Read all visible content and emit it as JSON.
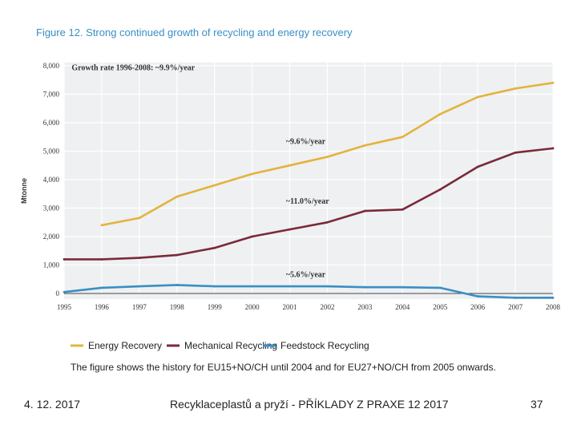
{
  "figure": {
    "title": "Figure 12. Strong continued growth of recycling and energy recovery",
    "note": "The figure shows the history for EU15+NO/CH until 2004 and for EU27+NO/CH from 2005 onwards."
  },
  "chart_data": {
    "type": "line",
    "title": "Figure 12. Strong continued growth of recycling and energy recovery",
    "xlabel": "",
    "ylabel": "Mtonne",
    "x": [
      1995,
      1996,
      1997,
      1998,
      1999,
      2000,
      2001,
      2002,
      2003,
      2004,
      2005,
      2006,
      2007,
      2008
    ],
    "x_ticks": [
      "1995",
      "1996",
      "1997",
      "1998",
      "1999",
      "2000",
      "2001",
      "2002",
      "2003",
      "2004",
      "2005",
      "2006",
      "2007",
      "2008"
    ],
    "y_ticks": [
      "0",
      "1,000",
      "2,000",
      "3,000",
      "4,000",
      "5,000",
      "6,000",
      "7,000",
      "8,000"
    ],
    "ylim": [
      0,
      8000
    ],
    "xlim": [
      1995,
      2008
    ],
    "grid": true,
    "series": [
      {
        "name": "Energy Recovery",
        "color": "#e3b43c",
        "x": [
          1996,
          1997,
          1998,
          1999,
          2000,
          2001,
          2002,
          2003,
          2004,
          2005,
          2006,
          2007,
          2008
        ],
        "values": [
          2400,
          2650,
          3400,
          3800,
          4200,
          4500,
          4800,
          5200,
          5500,
          6300,
          6900,
          7200,
          7400
        ]
      },
      {
        "name": "Mechanical Recycling",
        "color": "#7a2a3a",
        "x": [
          1995,
          1996,
          1997,
          1998,
          1999,
          2000,
          2001,
          2002,
          2003,
          2004,
          2005,
          2006,
          2007,
          2008
        ],
        "values": [
          1200,
          1200,
          1250,
          1350,
          1600,
          2000,
          2250,
          2500,
          2900,
          2950,
          3650,
          4450,
          4950,
          5100
        ]
      },
      {
        "name": "Feedstock Recycling",
        "color": "#3a8fc4",
        "x": [
          1995,
          1996,
          1997,
          1998,
          1999,
          2000,
          2001,
          2002,
          2003,
          2004,
          2005,
          2006,
          2007,
          2008
        ],
        "values": [
          50,
          200,
          250,
          300,
          250,
          250,
          250,
          250,
          220,
          220,
          200,
          -100,
          -150,
          -150
        ]
      }
    ],
    "annotations": [
      {
        "text": "Growth rate 1996-2008: ~9.9%/year",
        "x": 1995.2,
        "y": 7850
      },
      {
        "text": "~9.6%/year",
        "x": 2000.9,
        "y": 5250
      },
      {
        "text": "~11.0%/year",
        "x": 2000.9,
        "y": 3150
      },
      {
        "text": "~5.6%/year",
        "x": 2000.9,
        "y": 580
      }
    ],
    "legend": [
      "Energy Recovery",
      "Mechanical Recycling",
      "Feedstock Recycling"
    ],
    "legend_position": "bottom"
  },
  "footer": {
    "date": "4. 12. 2017",
    "title": "Recyklaceplastů a pryží - PŘÍKLADY Z PRAXE 12 2017",
    "page": "37"
  }
}
